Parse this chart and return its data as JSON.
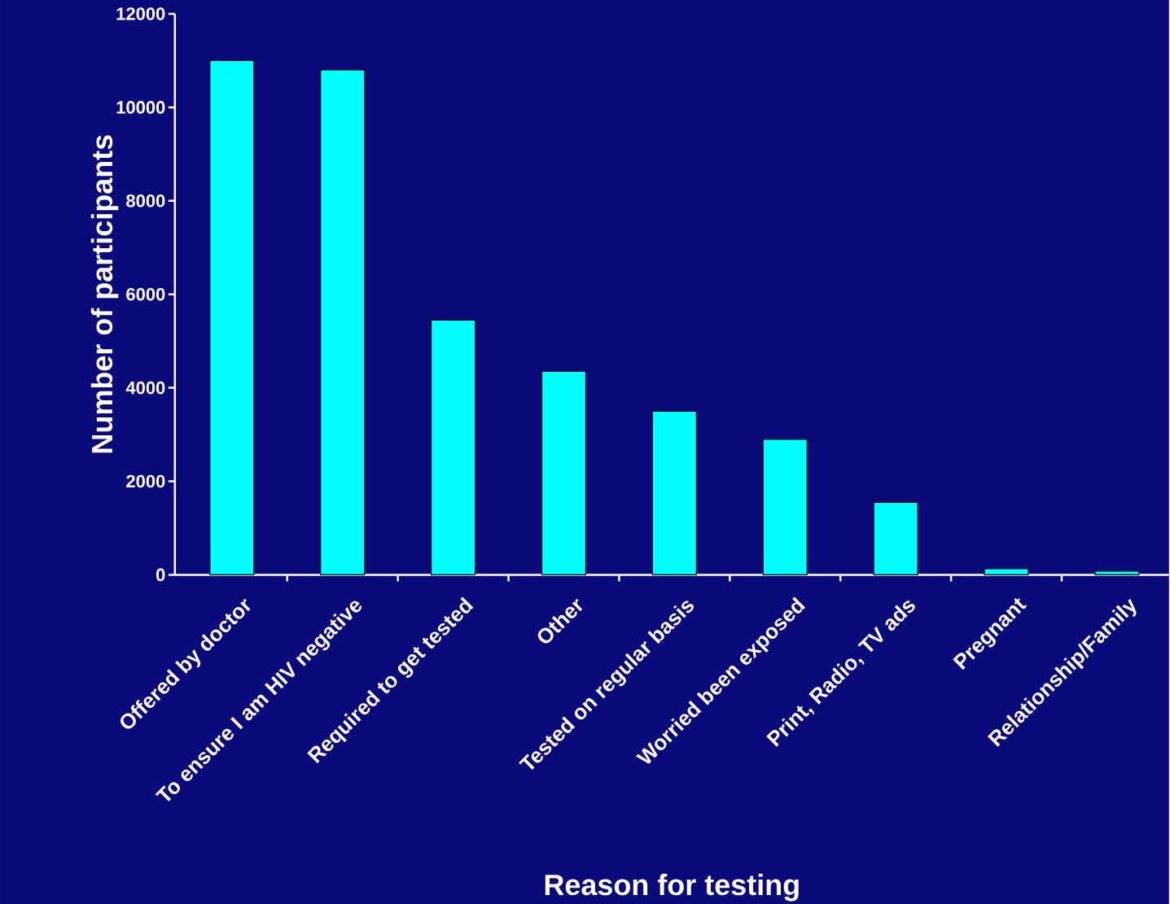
{
  "chart_data": {
    "type": "bar",
    "xlabel": "Reason for testing",
    "ylabel": "Number of participants",
    "categories": [
      "Offered by doctor",
      "To ensure I am HIV negative",
      "Required to get tested",
      "Other",
      "Tested on regular basis",
      "Worried been exposed",
      "Print, Radio, TV ads",
      "Pregnant",
      "Relationship/Family"
    ],
    "values": [
      11000,
      10800,
      5450,
      4350,
      3500,
      2900,
      1550,
      130,
      80
    ],
    "color": "#00ffff",
    "ylim": [
      0,
      12000
    ],
    "yticks": [
      0,
      2000,
      4000,
      6000,
      8000,
      10000,
      12000
    ],
    "grid": false
  }
}
